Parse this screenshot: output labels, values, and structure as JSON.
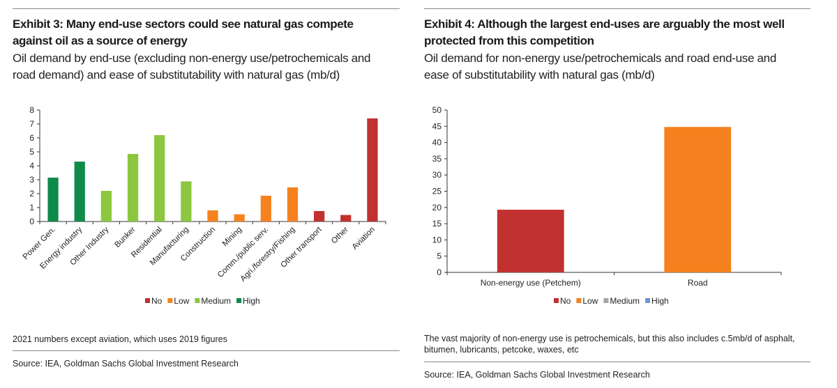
{
  "left": {
    "title_line1": "Exhibit 3: Many end-use sectors could see natural gas compete",
    "title_line2": "against oil as a source of energy",
    "subtitle_line1": "Oil demand by end-use (excluding non-energy use/petrochemicals and",
    "subtitle_line2": "road demand) and ease of substitutability with natural gas (mb/d)",
    "note": "2021 numbers except aviation, which uses 2019 figures",
    "source": "Source: IEA, Goldman Sachs Global Investment Research"
  },
  "right": {
    "title_line1": "Exhibit 4: Although the largest end-uses are arguably the most well",
    "title_line2": "protected from this competition",
    "subtitle_line1": "Oil demand for non-energy use/petrochemicals and road end-use and",
    "subtitle_line2": "ease of substitutability with natural gas (mb/d)",
    "note_line1": "The vast majority of non-energy use is petrochemicals, but this also includes c.5mb/d of asphalt,",
    "note_line2": "bitumen, lubricants, petcoke, waxes, etc",
    "source": "Source: IEA, Goldman Sachs Global Investment Research"
  },
  "colors": {
    "No": "#c1312f",
    "Low": "#f5821f",
    "Medium": "#8dc63f",
    "High": "#108a4b",
    "MediumGrey": "#a6a6a6",
    "HighBlue": "#6f97cf"
  },
  "chart_data": [
    {
      "type": "bar",
      "title": "Exhibit 3: Many end-use sectors could see natural gas compete against oil as a source of energy",
      "ylabel": "mb/d",
      "ylim": [
        0,
        8
      ],
      "yticks": [
        0,
        1,
        2,
        3,
        4,
        5,
        6,
        7,
        8
      ],
      "categories": [
        "Power Gen.",
        "Energy industry",
        "Other Industry",
        "Bunker",
        "Residential",
        "Manufacturing",
        "Construction",
        "Mining",
        "Comm./public serv.",
        "Agri./forestry/Fishing",
        "Other transport",
        "Other",
        "Aviation"
      ],
      "values": [
        3.15,
        4.3,
        2.2,
        4.85,
        6.2,
        2.88,
        0.8,
        0.52,
        1.85,
        2.45,
        0.75,
        0.47,
        7.4
      ],
      "substitutability": [
        "High",
        "High",
        "Medium",
        "Medium",
        "Medium",
        "Medium",
        "Low",
        "Low",
        "Low",
        "Low",
        "No",
        "No",
        "No"
      ],
      "legend": [
        "No",
        "Low",
        "Medium",
        "High"
      ],
      "legend_position": "bottom"
    },
    {
      "type": "bar",
      "title": "Exhibit 4: Although the largest end-uses are arguably the most well protected from this competition",
      "ylabel": "mb/d",
      "ylim": [
        0,
        50
      ],
      "yticks": [
        0,
        5,
        10,
        15,
        20,
        25,
        30,
        35,
        40,
        45,
        50
      ],
      "categories": [
        "Non-energy use (Petchem)",
        "Road"
      ],
      "values": [
        19.3,
        44.8
      ],
      "substitutability": [
        "No",
        "Low"
      ],
      "legend": [
        "No",
        "Low",
        "Medium",
        "High"
      ],
      "legend_position": "bottom"
    }
  ]
}
